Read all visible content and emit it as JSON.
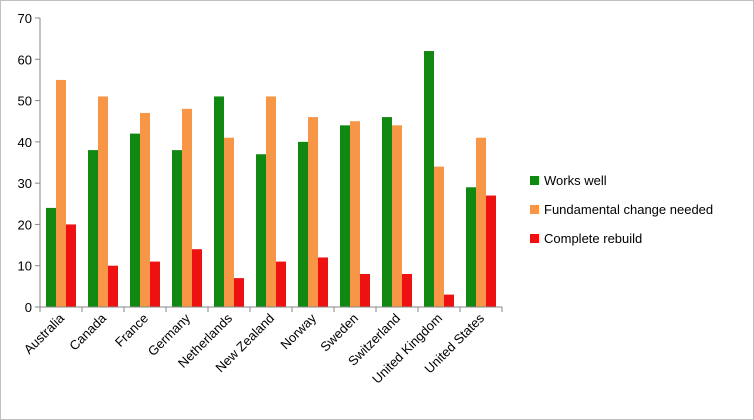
{
  "chart_data": {
    "type": "bar",
    "title": "",
    "xlabel": "",
    "ylabel": "",
    "ylim": [
      0,
      70
    ],
    "yticks": [
      0,
      10,
      20,
      30,
      40,
      50,
      60,
      70
    ],
    "grid": false,
    "legend_position": "right",
    "categories": [
      "Australia",
      "Canada",
      "France",
      "Germany",
      "Netherlands",
      "New Zealand",
      "Norway",
      "Sweden",
      "Switzerland",
      "United Kingdom",
      "United States"
    ],
    "series": [
      {
        "name": "Works well",
        "color": "#118811",
        "values": [
          24,
          38,
          42,
          38,
          51,
          37,
          40,
          44,
          46,
          62,
          29
        ]
      },
      {
        "name": "Fundamental change needed",
        "color": "#f79646",
        "values": [
          55,
          51,
          47,
          48,
          41,
          51,
          46,
          45,
          44,
          34,
          41
        ]
      },
      {
        "name": "Complete rebuild",
        "color": "#ee1111",
        "values": [
          20,
          10,
          11,
          14,
          7,
          11,
          12,
          8,
          8,
          3,
          27
        ]
      }
    ]
  }
}
